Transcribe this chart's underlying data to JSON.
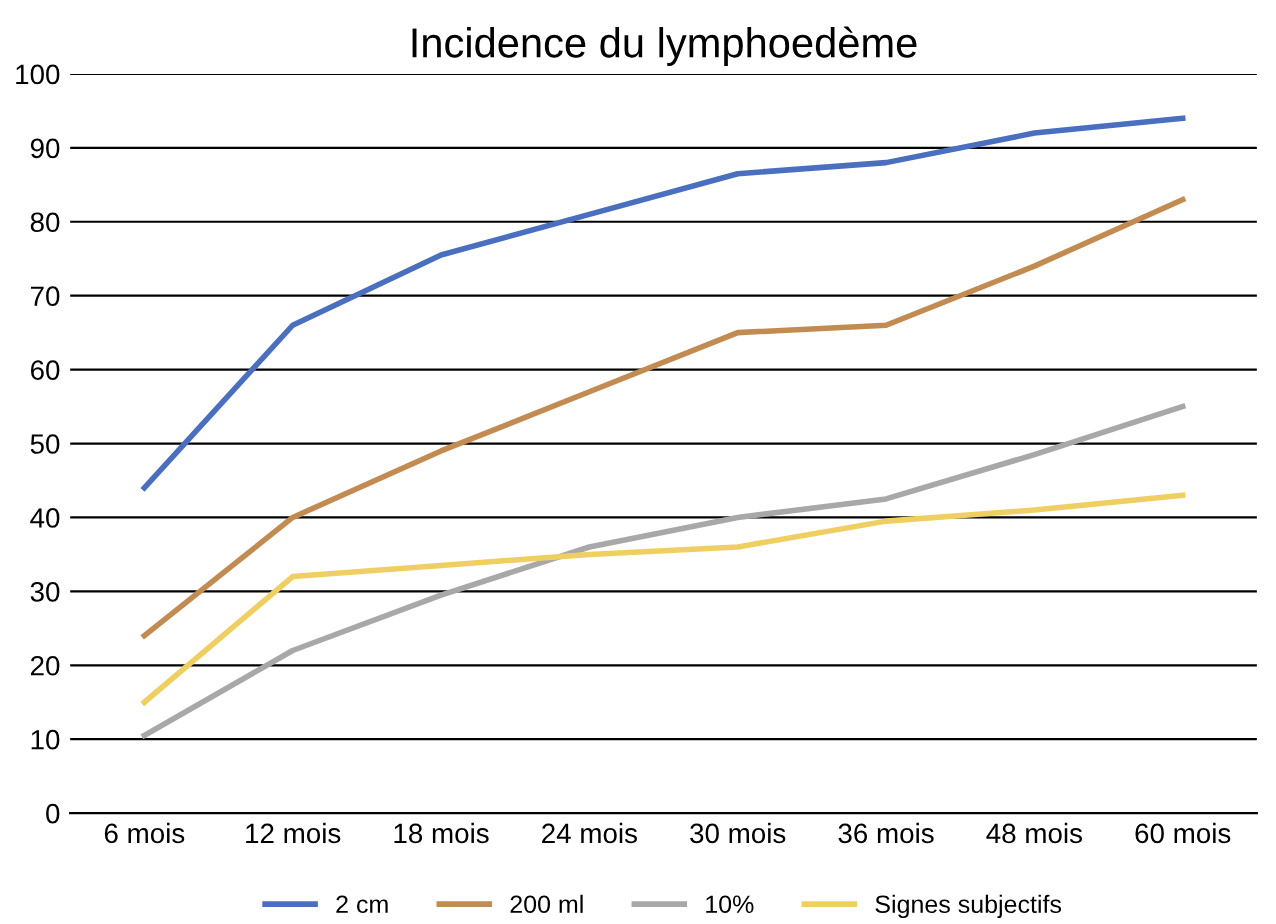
{
  "chart_data": {
    "type": "line",
    "title": "Incidence du lymphoedème",
    "categories": [
      "6 mois",
      "12 mois",
      "18 mois",
      "24 mois",
      "30 mois",
      "36 mois",
      "48 mois",
      "60 mois"
    ],
    "series": [
      {
        "name": "2 cm",
        "color": "#4a6fbf",
        "values": [
          44,
          66,
          75.5,
          81,
          86.5,
          88,
          92,
          94
        ]
      },
      {
        "name": "200 ml",
        "color": "#c28b52",
        "values": [
          24,
          40,
          49,
          57,
          65,
          66,
          74,
          83
        ]
      },
      {
        "name": "10%",
        "color": "#a8a8a8",
        "values": [
          10.5,
          22,
          29.5,
          36,
          40,
          42.5,
          48.5,
          55
        ]
      },
      {
        "name": "Signes subjectifs",
        "color": "#f0cf62",
        "values": [
          15,
          32,
          33.5,
          35,
          36,
          39.5,
          41,
          43
        ]
      }
    ],
    "ylim": [
      0,
      100
    ],
    "yticks": [
      0,
      10,
      20,
      30,
      40,
      50,
      60,
      70,
      80,
      90,
      100
    ],
    "grid": "y",
    "legend": "bottom",
    "marker": "none",
    "line_style": "solid"
  }
}
